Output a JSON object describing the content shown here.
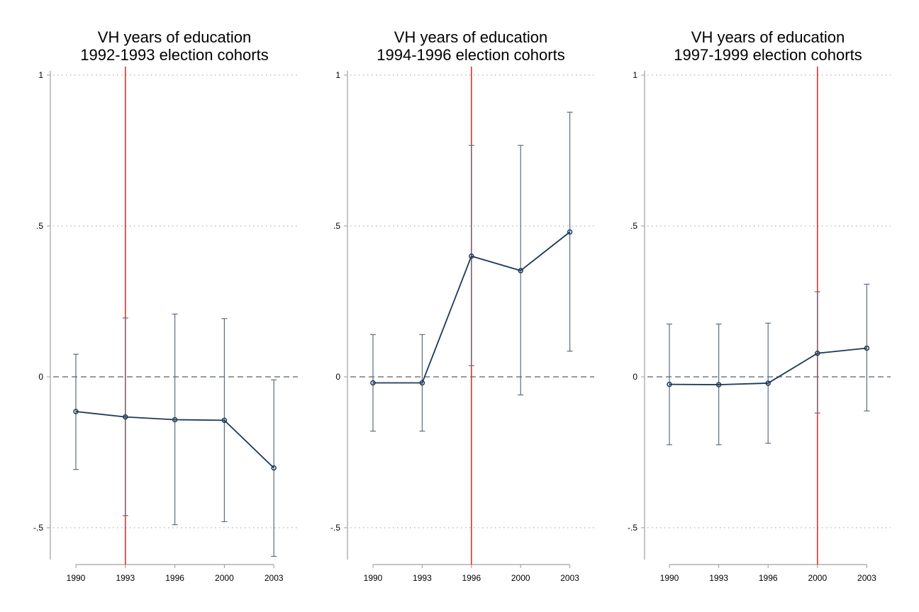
{
  "chart_data": [
    {
      "type": "line",
      "title": [
        "VH years of education",
        "1992-1993 election cohorts"
      ],
      "xlabel": "",
      "ylabel": "",
      "categories": [
        "1990",
        "1993",
        "1996",
        "2000",
        "2003"
      ],
      "yticks": [
        "1",
        ".5",
        "0",
        "-.5"
      ],
      "ylim": [
        -0.62,
        1.03
      ],
      "grid": "horizontal dotted",
      "reference_line_y": 0,
      "vertical_line_at": "1993",
      "series": [
        {
          "values": [
            -0.115,
            -0.133,
            -0.142,
            -0.144,
            -0.302
          ],
          "ci_low": [
            -0.307,
            -0.46,
            -0.49,
            -0.48,
            -0.595
          ],
          "ci_high": [
            0.075,
            0.195,
            0.208,
            0.193,
            -0.01
          ]
        }
      ],
      "colors": {
        "series": "#1b3a56",
        "ci": "#5b6e80",
        "vline": "#e8302b",
        "grid": "#a9b2b9",
        "zero": "#555f6b"
      }
    },
    {
      "type": "line",
      "title": [
        "VH years of education",
        "1994-1996 election cohorts"
      ],
      "xlabel": "",
      "ylabel": "",
      "categories": [
        "1990",
        "1993",
        "1996",
        "2000",
        "2003"
      ],
      "yticks": [
        "1",
        ".5",
        "0",
        "-.5"
      ],
      "ylim": [
        -0.62,
        1.03
      ],
      "grid": "horizontal dotted",
      "reference_line_y": 0,
      "vertical_line_at": "1996",
      "series": [
        {
          "values": [
            -0.02,
            -0.02,
            0.4,
            0.352,
            0.48
          ],
          "ci_low": [
            -0.18,
            -0.18,
            0.037,
            -0.06,
            0.085
          ],
          "ci_high": [
            0.14,
            0.14,
            0.767,
            0.767,
            0.877
          ]
        }
      ],
      "colors": {
        "series": "#1b3a56",
        "ci": "#5b6e80",
        "vline": "#e8302b",
        "grid": "#a9b2b9",
        "zero": "#555f6b"
      }
    },
    {
      "type": "line",
      "title": [
        "VH years of education",
        "1997-1999 election cohorts"
      ],
      "xlabel": "",
      "ylabel": "",
      "categories": [
        "1990",
        "1993",
        "1996",
        "2000",
        "2003"
      ],
      "yticks": [
        "1",
        ".5",
        "0",
        "-.5"
      ],
      "ylim": [
        -0.62,
        1.03
      ],
      "grid": "horizontal dotted",
      "reference_line_y": 0,
      "vertical_line_at": "2000",
      "series": [
        {
          "values": [
            -0.025,
            -0.026,
            -0.021,
            0.078,
            0.095
          ],
          "ci_low": [
            -0.225,
            -0.225,
            -0.22,
            -0.12,
            -0.113
          ],
          "ci_high": [
            0.175,
            0.175,
            0.178,
            0.282,
            0.307
          ]
        }
      ],
      "colors": {
        "series": "#1b3a56",
        "ci": "#5b6e80",
        "vline": "#e8302b",
        "grid": "#a9b2b9",
        "zero": "#555f6b"
      }
    }
  ]
}
